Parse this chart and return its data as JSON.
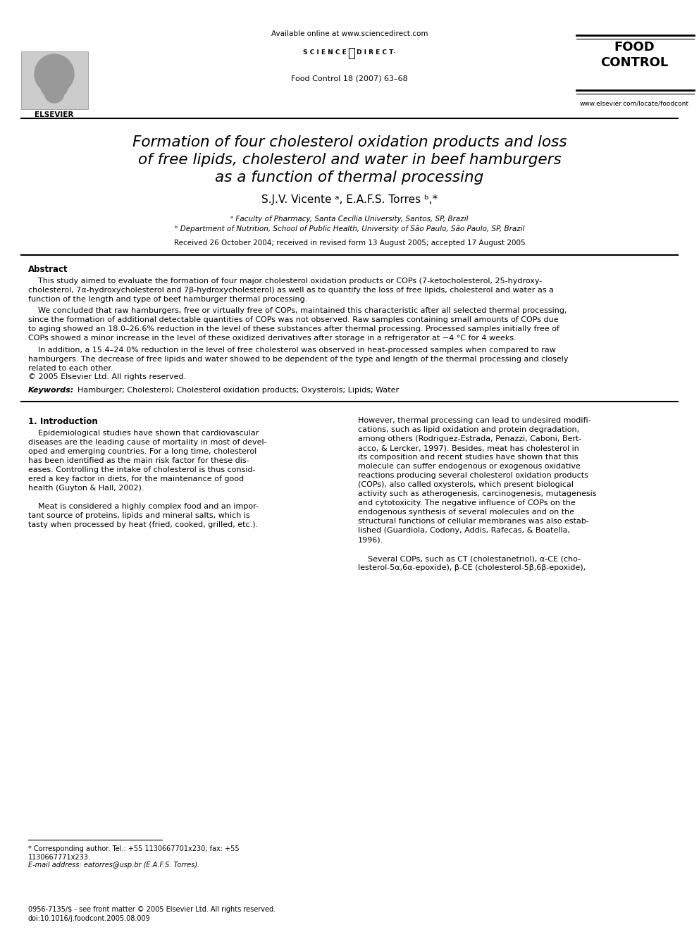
{
  "header_available": "Available online at www.sciencedirect.com",
  "header_journal_line1": "Food Control 18 (2007) 63–68",
  "header_food_control": "FOOD\nCONTROL",
  "header_url": "www.elsevier.com/locate/foodcont",
  "title_line1": "Formation of four cholesterol oxidation products and loss",
  "title_line2": "of free lipids, cholesterol and water in beef hamburgers",
  "title_line3": "as a function of thermal processing",
  "authors": "S.J.V. Vicente ᵃ, E.A.F.S. Torres ᵇ,*",
  "affil_a": "ᵃ Faculty of Pharmacy, Santa Cecília University, Santos, SP, Brazil",
  "affil_b": "ᵇ Department of Nutrition, School of Public Health, University of São Paulo, São Paulo, SP, Brazil",
  "received": "Received 26 October 2004; received in revised form 13 August 2005; accepted 17 August 2005",
  "abstract_heading": "Abstract",
  "abstract_p1": "    This study aimed to evaluate the formation of four major cholesterol oxidation products or COPs (7-ketocholesterol, 25-hydroxy-\ncholesterol, 7α-hydroxycholesterol and 7β-hydroxycholesterol) as well as to quantify the loss of free lipids, cholesterol and water as a\nfunction of the length and type of beef hamburger thermal processing.",
  "abstract_p2": "    We concluded that raw hamburgers, free or virtually free of COPs, maintained this characteristic after all selected thermal processing,\nsince the formation of additional detectable quantities of COPs was not observed. Raw samples containing small amounts of COPs due\nto aging showed an 18.0–26.6% reduction in the level of these substances after thermal processing. Processed samples initially free of\nCOPs showed a minor increase in the level of these oxidized derivatives after storage in a refrigerator at −4 °C for 4 weeks.",
  "abstract_p3": "    In addition, a 15.4–24.0% reduction in the level of free cholesterol was observed in heat-processed samples when compared to raw\nhamburgers. The decrease of free lipids and water showed to be dependent of the type and length of the thermal processing and closely\nrelated to each other.",
  "copyright": "© 2005 Elsevier Ltd. All rights reserved.",
  "keywords_label": "Keywords:",
  "keywords": "Hamburger; Cholesterol; Cholesterol oxidation products; Oxysterols; Lipids; Water",
  "section1_heading": "1. Introduction",
  "intro_col1_p1": "    Epidemiological studies have shown that cardiovascular\ndiseases are the leading cause of mortality in most of devel-\noped and emerging countries. For a long time, cholesterol\nhas been identified as the main risk factor for these dis-\neases. Controlling the intake of cholesterol is thus consid-\nered a key factor in diets, for the maintenance of good\nhealth (Guyton & Hall, 2002).",
  "intro_col1_p2": "    Meat is considered a highly complex food and an impor-\ntant source of proteins, lipids and mineral salts, which is\ntasty when processed by heat (fried, cooked, grilled, etc.).",
  "intro_col2_p1": "However, thermal processing can lead to undesired modifi-\ncations, such as lipid oxidation and protein degradation,\namong others (Rodriguez-Estrada, Penazzi, Caboni, Bert-\nacco, & Lercker, 1997). Besides, meat has cholesterol in\nits composition and recent studies have shown that this\nmolecule can suffer endogenous or exogenous oxidative\nreactions producing several cholesterol oxidation products\n(COPs), also called oxysterols, which present biological\nactivity such as atherogenesis, carcinogenesis, mutagenesis\nand cytotoxicity. The negative influence of COPs on the\nendogenous synthesis of several molecules and on the\nstructural functions of cellular membranes was also estab-\nlished (Guardiola, Codony, Addis, Rafecas, & Boatella,\n1996).",
  "intro_col2_p2": "    Several COPs, such as CT (cholestanetriol), α-CE (cho-\nlesterol-5α,6α-epoxide), β-CE (cholesterol-5β,6β-epoxide),",
  "footnote_star": "* Corresponding author. Tel.: +55 1130667701x230; fax: +55\n1130667771x233.",
  "footnote_email": "E-mail address: eatorres@usp.br (E.A.F.S. Torres).",
  "footer_issn": "0956-7135/$ - see front matter © 2005 Elsevier Ltd. All rights reserved.",
  "footer_doi": "doi:10.1016/j.foodcont.2005.08.009",
  "background_color": "#ffffff",
  "text_color": "#000000",
  "line_color": "#000000"
}
